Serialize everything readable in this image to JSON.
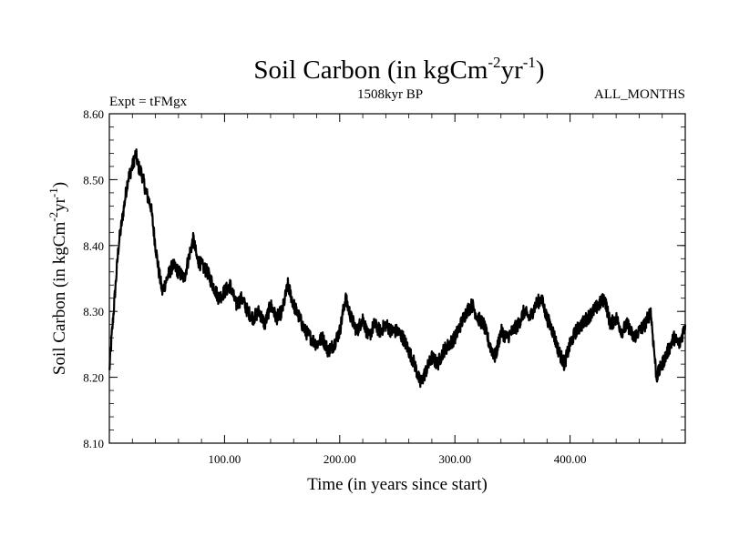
{
  "chart_data": {
    "type": "line",
    "title": {
      "main": "Soil Carbon (in kgCm",
      "sup1": "-2",
      "mid": "yr",
      "sup2": "-1",
      "end": ")"
    },
    "subtitle_left": "Expt = tFMgx",
    "subtitle_center": "1508kyr BP",
    "subtitle_right": "ALL_MONTHS",
    "xlabel": "Time (in years since start)",
    "ylabel": {
      "main": "Soil Carbon (in kgCm",
      "sup1": "-2",
      "mid": "yr",
      "sup2": "-1",
      "end": ")"
    },
    "xlim": [
      0,
      500
    ],
    "ylim": [
      8.1,
      8.6
    ],
    "x_ticks": [
      {
        "value": 100,
        "label": "100.00"
      },
      {
        "value": 200,
        "label": "200.00"
      },
      {
        "value": 300,
        "label": "300.00"
      },
      {
        "value": 400,
        "label": "400.00"
      }
    ],
    "y_ticks": [
      {
        "value": 8.1,
        "label": "8.10"
      },
      {
        "value": 8.2,
        "label": "8.20"
      },
      {
        "value": 8.3,
        "label": "8.30"
      },
      {
        "value": 8.4,
        "label": "8.40"
      },
      {
        "value": 8.5,
        "label": "8.50"
      },
      {
        "value": 8.6,
        "label": "8.60"
      }
    ],
    "series": [
      {
        "name": "Soil Carbon",
        "color": "#000000",
        "x": [
          0,
          2,
          5,
          8,
          12,
          16,
          20,
          23,
          25,
          28,
          32,
          36,
          40,
          43,
          46,
          50,
          55,
          60,
          65,
          70,
          73,
          76,
          80,
          85,
          90,
          95,
          100,
          105,
          110,
          115,
          120,
          125,
          130,
          135,
          140,
          145,
          150,
          155,
          160,
          165,
          170,
          175,
          180,
          185,
          190,
          195,
          200,
          205,
          210,
          215,
          220,
          225,
          230,
          235,
          240,
          245,
          250,
          255,
          260,
          265,
          270,
          275,
          280,
          285,
          290,
          295,
          300,
          305,
          310,
          315,
          320,
          325,
          330,
          335,
          340,
          345,
          350,
          355,
          360,
          365,
          370,
          375,
          380,
          385,
          390,
          395,
          400,
          405,
          410,
          415,
          420,
          425,
          430,
          435,
          440,
          445,
          450,
          455,
          460,
          465,
          470,
          475,
          480,
          485,
          490,
          495,
          500
        ],
        "values": [
          8.21,
          8.26,
          8.33,
          8.4,
          8.45,
          8.5,
          8.52,
          8.54,
          8.52,
          8.51,
          8.48,
          8.46,
          8.4,
          8.36,
          8.33,
          8.35,
          8.37,
          8.36,
          8.35,
          8.39,
          8.41,
          8.38,
          8.37,
          8.36,
          8.34,
          8.32,
          8.33,
          8.34,
          8.31,
          8.32,
          8.3,
          8.29,
          8.3,
          8.28,
          8.31,
          8.29,
          8.3,
          8.34,
          8.31,
          8.29,
          8.27,
          8.26,
          8.25,
          8.26,
          8.24,
          8.25,
          8.27,
          8.32,
          8.29,
          8.27,
          8.29,
          8.26,
          8.28,
          8.27,
          8.28,
          8.27,
          8.27,
          8.26,
          8.24,
          8.22,
          8.19,
          8.21,
          8.23,
          8.22,
          8.24,
          8.25,
          8.26,
          8.28,
          8.3,
          8.31,
          8.29,
          8.28,
          8.25,
          8.23,
          8.27,
          8.26,
          8.27,
          8.28,
          8.3,
          8.29,
          8.31,
          8.32,
          8.29,
          8.27,
          8.24,
          8.22,
          8.25,
          8.27,
          8.28,
          8.29,
          8.3,
          8.31,
          8.32,
          8.28,
          8.29,
          8.27,
          8.28,
          8.26,
          8.27,
          8.28,
          8.3,
          8.2,
          8.22,
          8.24,
          8.26,
          8.25,
          8.28
        ]
      }
    ]
  }
}
